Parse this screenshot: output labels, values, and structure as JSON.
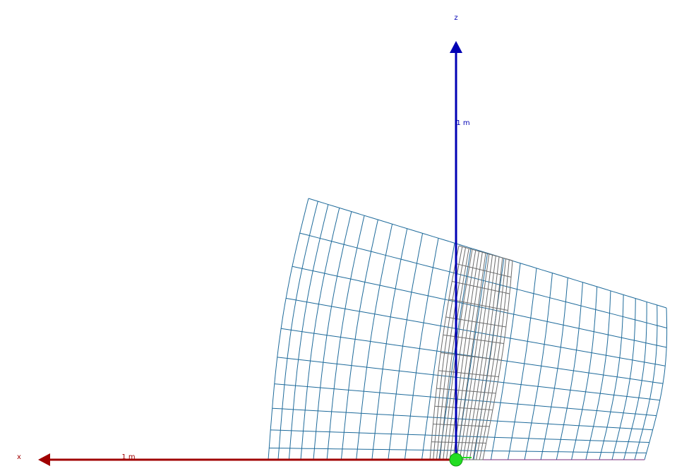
{
  "viewer": {
    "background": "#ffffff",
    "axes": {
      "z": {
        "label": "z",
        "tick_label": "1 m",
        "color": "#0000b4"
      },
      "x": {
        "label": "x",
        "tick_label": "1 m",
        "color": "#a00000"
      }
    },
    "mesh": {
      "name": "blue-wireframe-mesh",
      "color": "#1f6b9b",
      "columns": 26,
      "rows": 10
    },
    "inner_mesh": {
      "name": "gray-inner-mesh",
      "color": "#6b6b6b",
      "columns": 16,
      "rows": 12
    },
    "origin_marker": {
      "color": "#22dd22"
    }
  }
}
